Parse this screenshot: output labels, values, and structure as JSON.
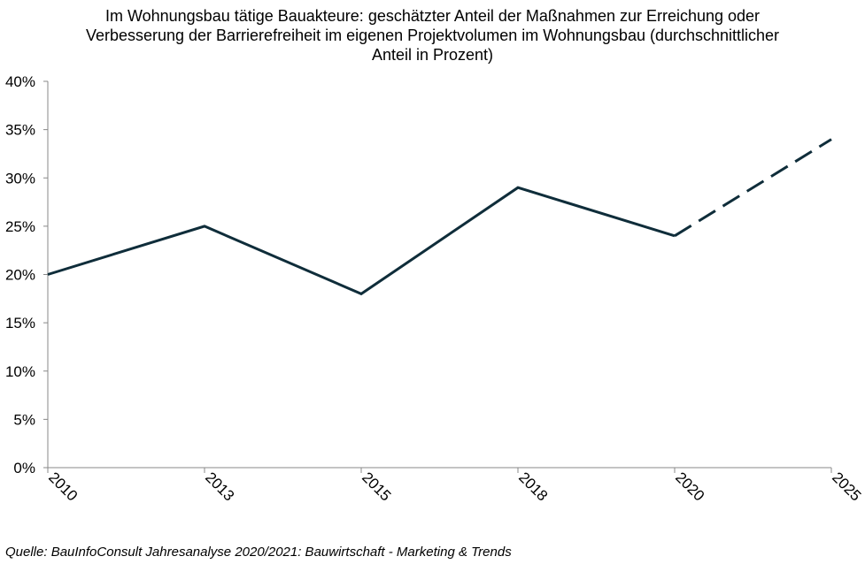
{
  "chart_data": {
    "type": "line",
    "title_lines": [
      "Im Wohnungsbau  tätige Bauakteure: geschätzter Anteil der Maßnahmen zur Erreichung oder",
      "Verbesserung  der Barrierefreiheit im eigenen Projektvolumen  im Wohnungsbau  (durchschnittlicher",
      "Anteil in Prozent)"
    ],
    "categories": [
      "2010",
      "2013",
      "2015",
      "2018",
      "2020",
      "2025"
    ],
    "series": [
      {
        "values": [
          20,
          25,
          18,
          29,
          24,
          34
        ],
        "dashed_from_index": 4
      }
    ],
    "yticks": [
      "0%",
      "5%",
      "10%",
      "15%",
      "20%",
      "25%",
      "30%",
      "35%",
      "40%"
    ],
    "ylim": [
      0,
      40
    ],
    "ytick_step": 5,
    "grid": false,
    "line_color": "#0f2d3a",
    "source": "Quelle: BauInfoConsult Jahresanalyse 2020/2021: Bauwirtschaft  - Marketing & Trends"
  }
}
